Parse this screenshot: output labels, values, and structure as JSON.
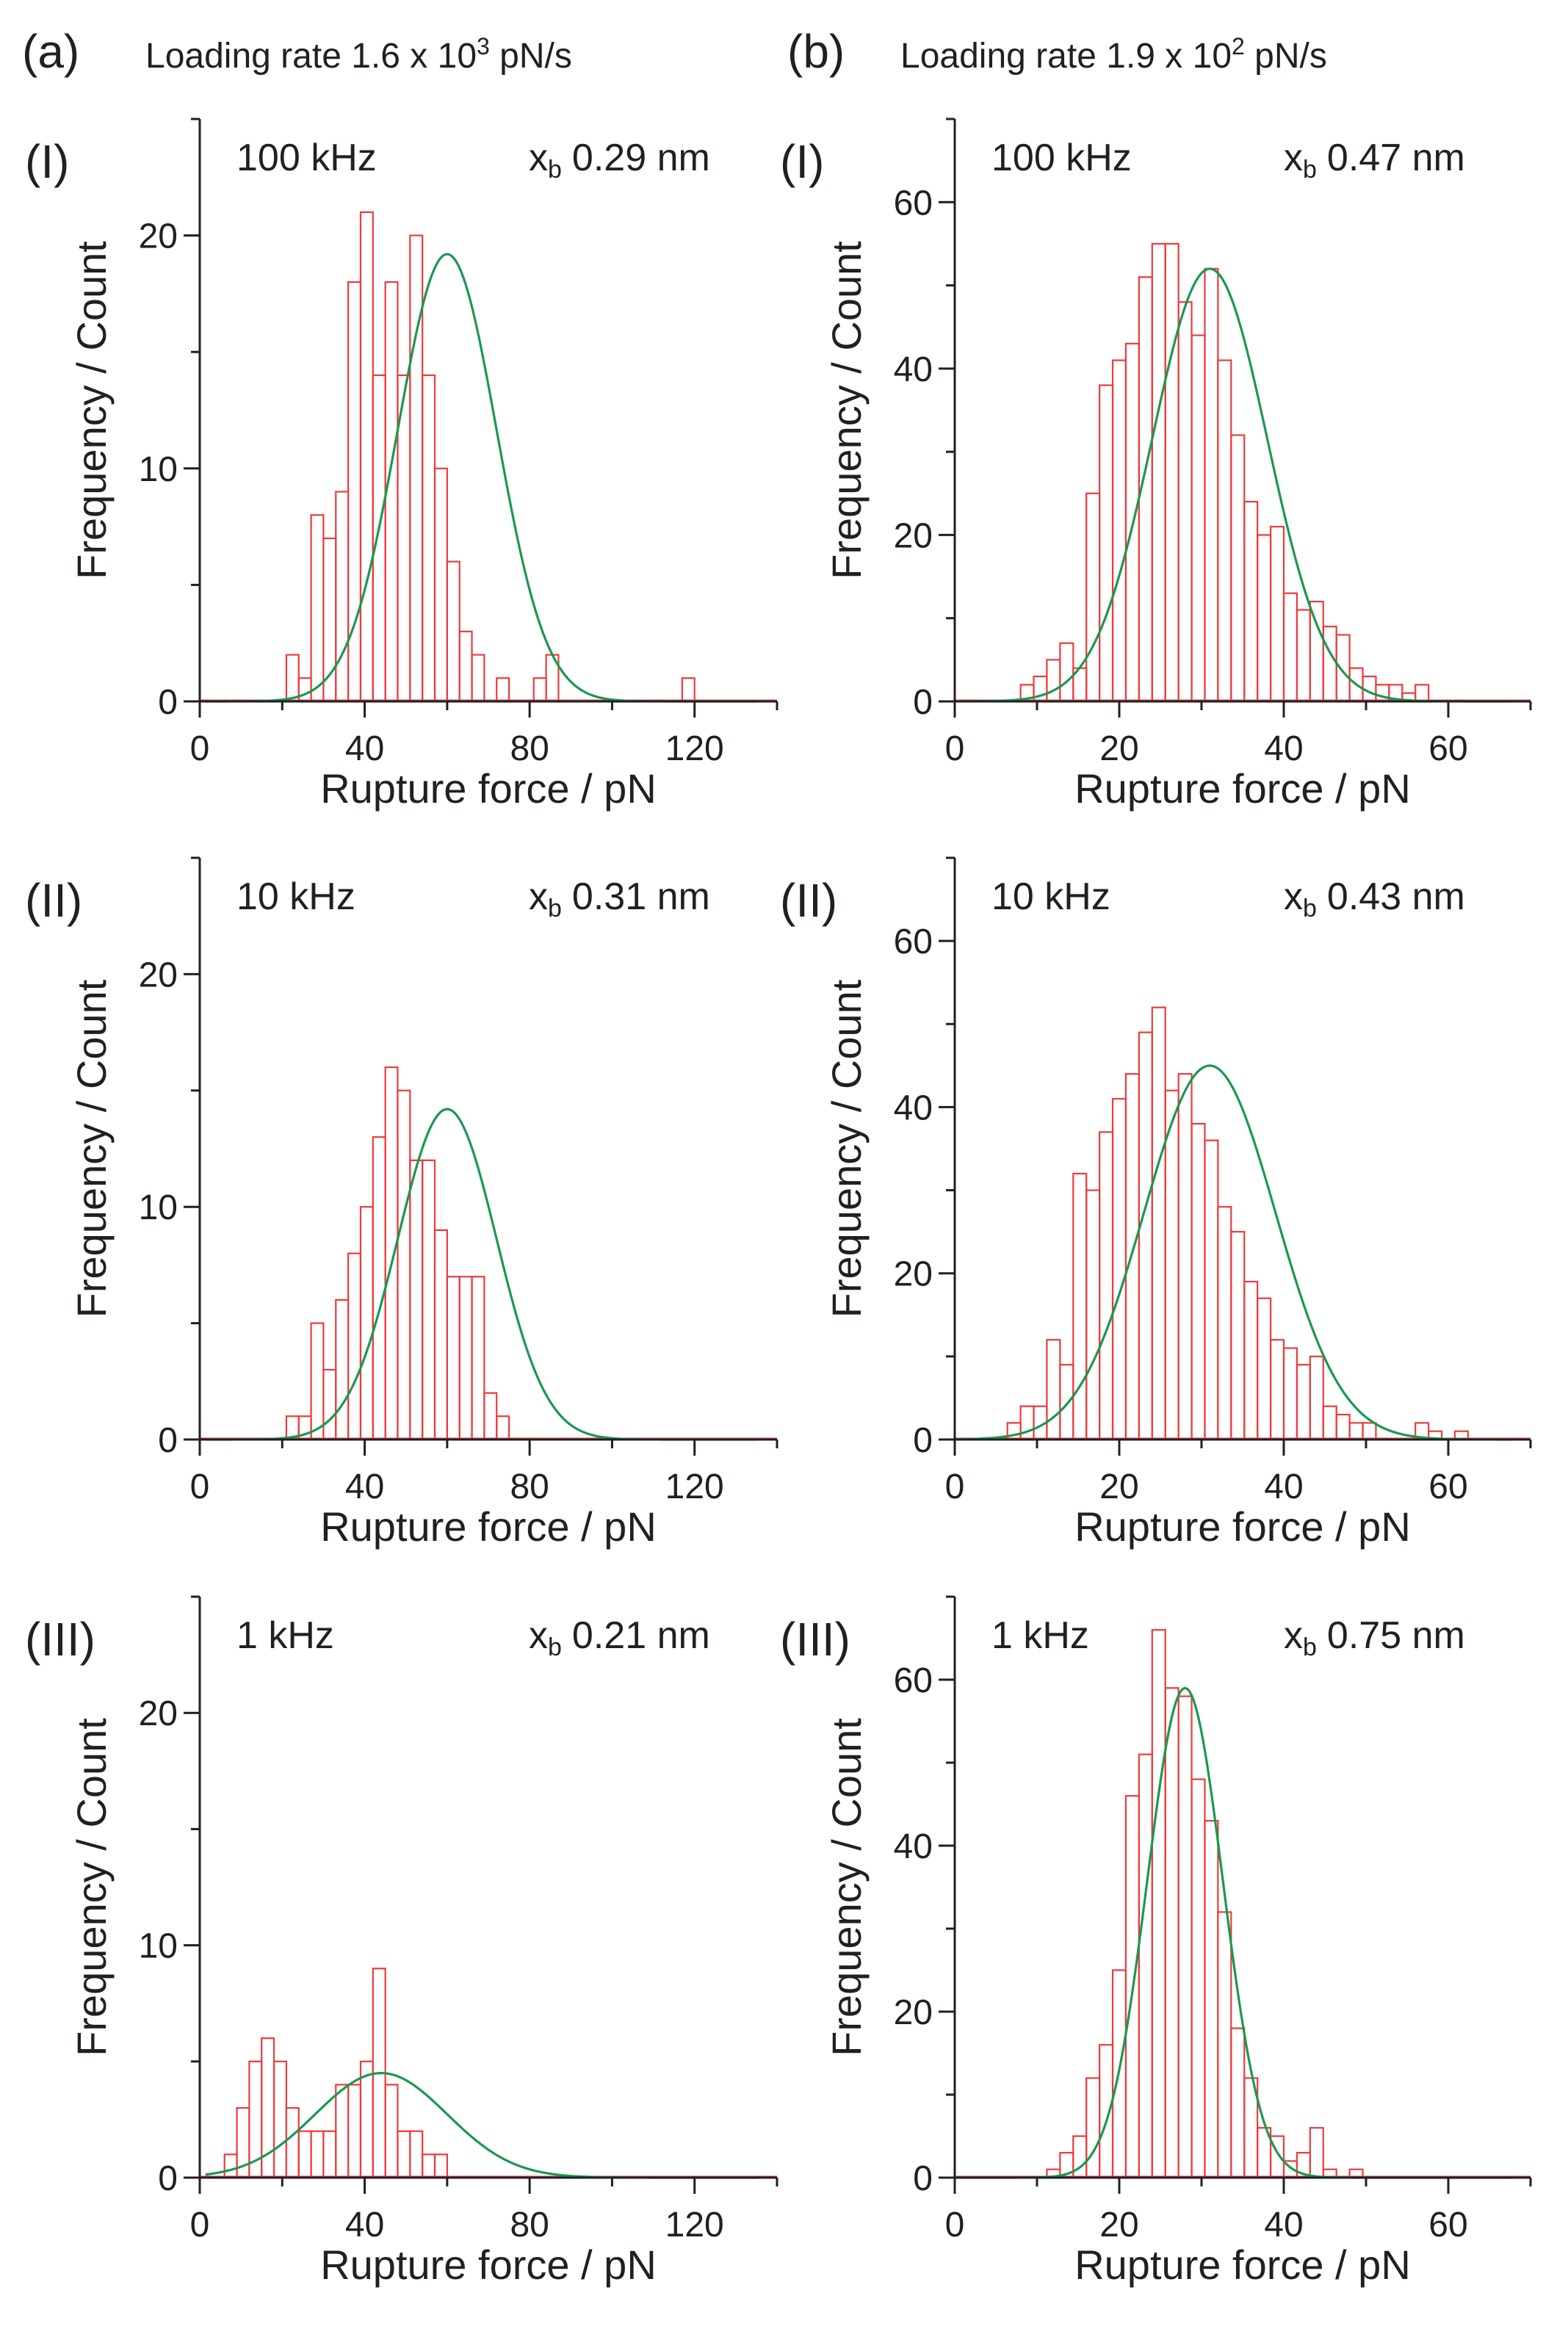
{
  "columns": [
    {
      "letter": "(a)",
      "title": {
        "pre": "Loading rate 1.6 x 10",
        "sup": "3",
        "post": " pN/s"
      }
    },
    {
      "letter": "(b)",
      "title": {
        "pre": "Loading rate 1.9 x 10",
        "sup": "2",
        "post": " pN/s"
      }
    }
  ],
  "colors": {
    "bars": "#ee3b3b",
    "fit": "#1a9850",
    "axis": "#231f20"
  },
  "chart_data": [
    {
      "type": "bar",
      "roman": "(I)",
      "freq": "100 kHz",
      "xb_label": "x",
      "xb_sub": "b",
      "xb_value": "0.29 nm",
      "xlabel": "Rupture force / pN",
      "ylabel": "Frequency / Count",
      "xlim": [
        0,
        140
      ],
      "ylim": [
        0,
        25
      ],
      "bin_start": 0,
      "bin_width": 3,
      "xticks": [
        0,
        40,
        80,
        120
      ],
      "yticks": [
        0,
        10,
        20
      ],
      "values": [
        0,
        0,
        0,
        0,
        0,
        0,
        0,
        2,
        1,
        8,
        7,
        9,
        18,
        21,
        14,
        18,
        14,
        20,
        14,
        10,
        6,
        3,
        2,
        0,
        1,
        0,
        0,
        1,
        2,
        0,
        0,
        0,
        0,
        0,
        0,
        0,
        0,
        0,
        0,
        1,
        0,
        0,
        0,
        0,
        0,
        0
      ],
      "fit": {
        "mu": 60,
        "sigma": 12,
        "amp": 19.2
      }
    },
    {
      "type": "bar",
      "roman": "(I)",
      "freq": "100 kHz",
      "xb_label": "x",
      "xb_sub": "b",
      "xb_value": "0.47 nm",
      "xlabel": "Rupture force / pN",
      "ylabel": "Frequency / Count",
      "xlim": [
        0,
        70
      ],
      "ylim": [
        0,
        70
      ],
      "bin_start": 0,
      "bin_width": 1.6,
      "xticks": [
        0,
        20,
        40,
        60
      ],
      "yticks": [
        0,
        20,
        40,
        60
      ],
      "values": [
        0,
        0,
        0,
        0,
        0,
        2,
        3,
        5,
        7,
        4,
        25,
        38,
        41,
        43,
        51,
        55,
        55,
        48,
        44,
        52,
        41,
        32,
        24,
        20,
        21,
        13,
        11,
        12,
        9,
        8,
        4,
        3,
        2,
        2,
        1,
        2,
        0,
        0,
        0,
        0,
        0,
        0,
        0,
        0
      ],
      "fit": {
        "mu": 31,
        "sigma": 7,
        "amp": 52
      }
    },
    {
      "type": "bar",
      "roman": "(II)",
      "freq": "10 kHz",
      "xb_label": "x",
      "xb_sub": "b",
      "xb_value": "0.31 nm",
      "xlabel": "Rupture force / pN",
      "ylabel": "Frequency / Count",
      "xlim": [
        0,
        140
      ],
      "ylim": [
        0,
        25
      ],
      "bin_start": 0,
      "bin_width": 3,
      "xticks": [
        0,
        40,
        80,
        120
      ],
      "yticks": [
        0,
        10,
        20
      ],
      "values": [
        0,
        0,
        0,
        0,
        0,
        0,
        0,
        1,
        1,
        5,
        3,
        6,
        8,
        10,
        13,
        16,
        15,
        12,
        12,
        9,
        7,
        7,
        7,
        2,
        1,
        0,
        0,
        0,
        0,
        0,
        0,
        0,
        0,
        0,
        0,
        0,
        0,
        0,
        0,
        0,
        0,
        0,
        0,
        0,
        0,
        0
      ],
      "fit": {
        "mu": 60,
        "sigma": 12,
        "amp": 14.2
      }
    },
    {
      "type": "bar",
      "roman": "(II)",
      "freq": "10 kHz",
      "xb_label": "x",
      "xb_sub": "b",
      "xb_value": "0.43 nm",
      "xlabel": "Rupture force / pN",
      "ylabel": "Frequency / Count",
      "xlim": [
        0,
        70
      ],
      "ylim": [
        0,
        70
      ],
      "bin_start": 0,
      "bin_width": 1.6,
      "xticks": [
        0,
        20,
        40,
        60
      ],
      "yticks": [
        0,
        20,
        40,
        60
      ],
      "values": [
        0,
        0,
        0,
        0,
        2,
        4,
        4,
        12,
        9,
        32,
        30,
        37,
        41,
        44,
        49,
        52,
        42,
        44,
        38,
        36,
        28,
        25,
        19,
        17,
        12,
        11,
        9,
        10,
        4,
        3,
        2,
        2,
        0,
        0,
        0,
        2,
        1,
        0,
        1,
        0,
        0,
        0,
        0,
        0
      ],
      "fit": {
        "mu": 31,
        "sigma": 8,
        "amp": 45
      }
    },
    {
      "type": "bar",
      "roman": "(III)",
      "freq": "1 kHz",
      "xb_label": "x",
      "xb_sub": "b",
      "xb_value": "0.21 nm",
      "xlabel": "Rupture force / pN",
      "ylabel": "Frequency / Count",
      "xlim": [
        0,
        140
      ],
      "ylim": [
        0,
        25
      ],
      "bin_start": 0,
      "bin_width": 3,
      "xticks": [
        0,
        40,
        80,
        120
      ],
      "yticks": [
        0,
        10,
        20
      ],
      "values": [
        0,
        0,
        1,
        3,
        5,
        6,
        5,
        3,
        2,
        2,
        2,
        4,
        4,
        5,
        9,
        4,
        2,
        2,
        1,
        1,
        0,
        0,
        0,
        0,
        0,
        0,
        0,
        0,
        0,
        0,
        0,
        0,
        0,
        0,
        0,
        0,
        0,
        0,
        0,
        0,
        0,
        0,
        0,
        0,
        0,
        0
      ],
      "fit": {
        "mu": 44,
        "sigma": 16,
        "amp": 4.5
      }
    },
    {
      "type": "bar",
      "roman": "(III)",
      "freq": "1 kHz",
      "xb_label": "x",
      "xb_sub": "b",
      "xb_value": "0.75 nm",
      "xlabel": "Rupture force / pN",
      "ylabel": "Frequency / Count",
      "xlim": [
        0,
        70
      ],
      "ylim": [
        0,
        70
      ],
      "bin_start": 0,
      "bin_width": 1.6,
      "xticks": [
        0,
        20,
        40,
        60
      ],
      "yticks": [
        0,
        20,
        40,
        60
      ],
      "values": [
        0,
        0,
        0,
        0,
        0,
        0,
        0,
        1,
        3,
        5,
        12,
        16,
        25,
        46,
        51,
        66,
        59,
        58,
        48,
        43,
        32,
        18,
        12,
        6,
        5,
        2,
        3,
        6,
        1,
        0,
        1,
        0,
        0,
        0,
        0,
        0,
        0,
        0,
        0,
        0,
        0,
        0,
        0,
        0
      ],
      "fit": {
        "mu": 28,
        "sigma": 4.6,
        "amp": 59
      }
    }
  ]
}
